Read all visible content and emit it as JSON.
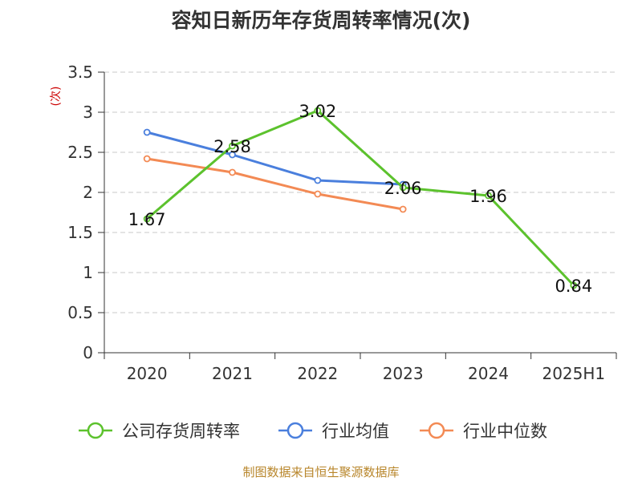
{
  "title": "容知日新历年存货周转率情况(次)",
  "source": "制图数据来自恒生聚源数据库",
  "chart_data": {
    "type": "line",
    "title": "容知日新历年存货周转率情况(次)",
    "ylabel": "(次)",
    "xlabel": "",
    "categories": [
      "2020",
      "2021",
      "2022",
      "2023",
      "2024",
      "2025H1"
    ],
    "ylim": [
      0,
      3.5
    ],
    "yticks": [
      "0",
      "0.5",
      "1",
      "1.5",
      "2",
      "2.5",
      "3",
      "3.5"
    ],
    "grid": true,
    "legend_position": "bottom",
    "series": [
      {
        "name": "公司存货周转率",
        "color": "#5cc22d",
        "values": [
          1.67,
          2.58,
          3.02,
          2.06,
          1.96,
          0.84
        ],
        "labels": [
          "1.67",
          "2.58",
          "3.02",
          "2.06",
          "1.96",
          "0.84"
        ]
      },
      {
        "name": "行业均值",
        "color": "#4a7fdd",
        "values": [
          2.75,
          2.47,
          2.15,
          2.1,
          null,
          null
        ]
      },
      {
        "name": "行业中位数",
        "color": "#f38a54",
        "values": [
          2.42,
          2.25,
          1.98,
          1.79,
          null,
          null
        ]
      }
    ]
  }
}
